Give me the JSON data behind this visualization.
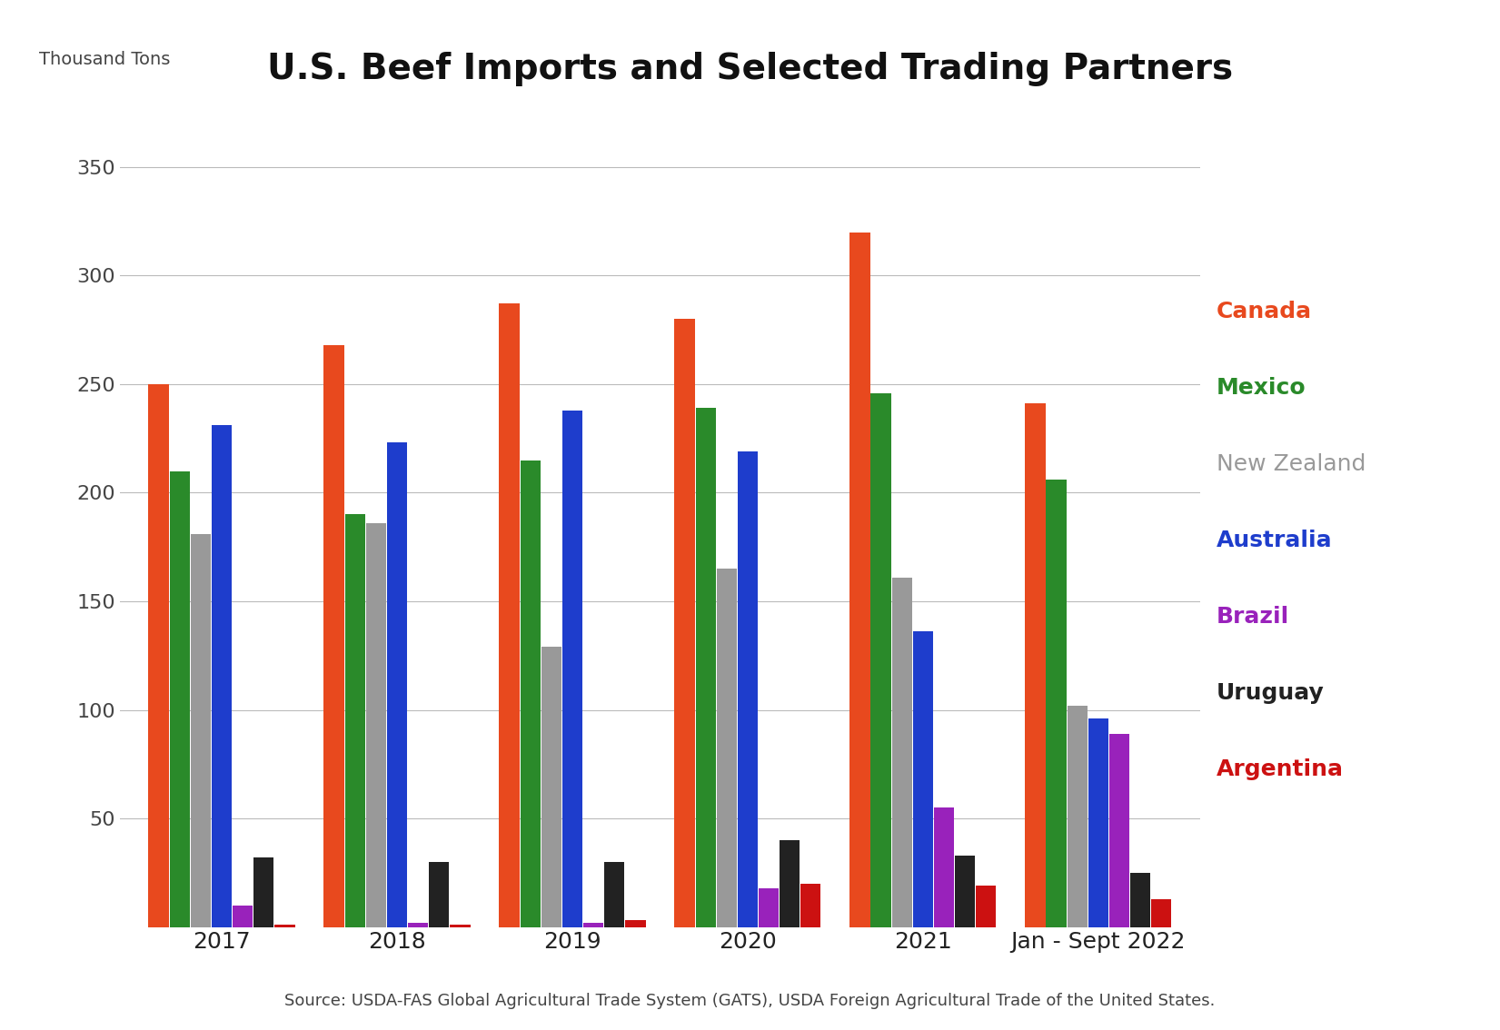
{
  "title": "U.S. Beef Imports and Selected Trading Partners",
  "ylabel": "Thousand Tons",
  "source": "Source: USDA-FAS Global Agricultural Trade System (GATS), USDA Foreign Agricultural Trade of the United States.",
  "years": [
    "2017",
    "2018",
    "2019",
    "2020",
    "2021",
    "Jan - Sept 2022"
  ],
  "series": {
    "Canada": [
      250,
      268,
      287,
      280,
      320,
      241
    ],
    "Mexico": [
      210,
      190,
      215,
      239,
      246,
      206
    ],
    "New Zealand": [
      181,
      186,
      129,
      165,
      161,
      102
    ],
    "Australia": [
      231,
      223,
      238,
      219,
      136,
      96
    ],
    "Brazil": [
      10,
      2,
      2,
      18,
      55,
      89
    ],
    "Uruguay": [
      32,
      30,
      30,
      40,
      33,
      25
    ],
    "Argentina": [
      1,
      1,
      3,
      20,
      19,
      13
    ]
  },
  "colors": {
    "Canada": "#e8491e",
    "Mexico": "#2a8a2a",
    "New Zealand": "#999999",
    "Australia": "#1e3dcc",
    "Brazil": "#9922bb",
    "Uruguay": "#222222",
    "Argentina": "#cc1111"
  },
  "ylim": [
    0,
    370
  ],
  "yticks": [
    0,
    50,
    100,
    150,
    200,
    250,
    300,
    350
  ],
  "background_color": "#ffffff",
  "title_fontsize": 28,
  "label_fontsize": 14,
  "legend_fontsize": 18,
  "tick_fontsize": 16,
  "source_fontsize": 13,
  "legend_entries": [
    "Canada",
    "Mexico",
    "New Zealand",
    "Australia",
    "Brazil",
    "Uruguay",
    "Argentina"
  ],
  "legend_bold": [
    true,
    true,
    false,
    true,
    true,
    true,
    true
  ]
}
